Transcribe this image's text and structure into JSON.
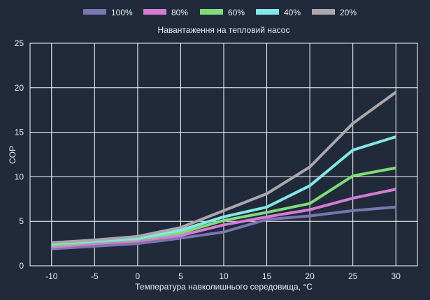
{
  "chart_data": {
    "type": "line",
    "title": "Навантаження на тепловий насос",
    "xlabel": "Температура навколишнього середовища, °C",
    "ylabel": "COP",
    "x": [
      -10,
      -5,
      0,
      5,
      10,
      15,
      20,
      25,
      30
    ],
    "xlim": [
      -12.5,
      32.5
    ],
    "ylim": [
      0,
      25
    ],
    "yticks": [
      0,
      5,
      10,
      15,
      20,
      25
    ],
    "grid": true,
    "legend_position": "top",
    "background": "#212a3a",
    "grid_color": "#ffffff",
    "series": [
      {
        "name": "100%",
        "color": "#7b75b0",
        "values": [
          1.9,
          2.2,
          2.5,
          3.1,
          3.8,
          5.2,
          5.6,
          6.2,
          6.6
        ]
      },
      {
        "name": "80%",
        "color": "#d47cd6",
        "values": [
          2.1,
          2.5,
          2.8,
          3.4,
          4.6,
          5.5,
          6.3,
          7.6,
          8.6
        ]
      },
      {
        "name": "60%",
        "color": "#7fdc7a",
        "values": [
          2.3,
          2.7,
          3.0,
          3.7,
          5.1,
          6.0,
          7.0,
          10.1,
          11.0
        ]
      },
      {
        "name": "40%",
        "color": "#85e8e8",
        "values": [
          2.5,
          2.8,
          3.1,
          4.0,
          5.5,
          6.6,
          9.0,
          13.0,
          14.5
        ]
      },
      {
        "name": "20%",
        "color": "#aca7ac",
        "values": [
          2.6,
          2.9,
          3.3,
          4.3,
          6.2,
          8.1,
          11.1,
          16.0,
          19.5
        ]
      }
    ]
  }
}
